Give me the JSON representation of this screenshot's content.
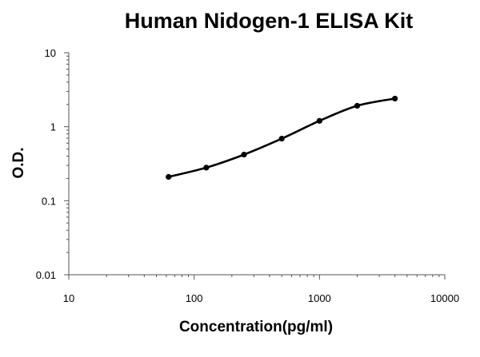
{
  "chart_data": {
    "type": "line",
    "title": "Human Nidogen-1 ELISA Kit",
    "xlabel": "Concentration(pg/ml)",
    "ylabel": "O.D.",
    "x_scale": "log",
    "y_scale": "log",
    "xlim": [
      10,
      10000
    ],
    "ylim": [
      0.01,
      10
    ],
    "x_ticks": [
      "10",
      "100",
      "1000",
      "10000"
    ],
    "y_ticks": [
      "10",
      "1",
      "0.1",
      "0.01"
    ],
    "grid": false,
    "legend": "none",
    "colors": {
      "line": "#000000",
      "marker": "#000000",
      "axis": "#555555"
    },
    "series": [
      {
        "x": [
          62.5,
          125,
          250,
          500,
          1000,
          2000,
          4000
        ],
        "y": [
          0.21,
          0.28,
          0.42,
          0.69,
          1.2,
          1.92,
          2.4
        ]
      }
    ]
  }
}
